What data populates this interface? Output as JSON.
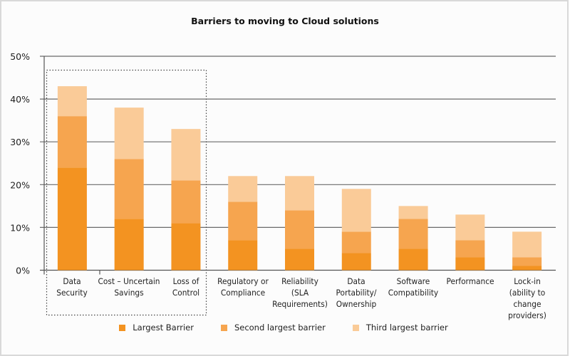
{
  "chart_data": {
    "type": "bar",
    "stacked": true,
    "title": "Barriers to moving to Cloud solutions",
    "categories": [
      "Data\nSecurity",
      "Cost – Uncertain\nSavings",
      "Loss of\nControl",
      "Regulatory or\nCompliance",
      "Reliability\n(SLA\nRequirements)",
      "Data\nPortability/\nOwnership",
      "Software\nCompatibility",
      "Performance",
      "Lock-in\n(ability to\nchange\nproviders)"
    ],
    "series": [
      {
        "name": "Largest Barrier",
        "color": "#f39321",
        "values": [
          24,
          12,
          11,
          7,
          5,
          4,
          5,
          3,
          1
        ]
      },
      {
        "name": "Second largest barrier",
        "color": "#f6a54f",
        "values": [
          12,
          14,
          10,
          9,
          9,
          5,
          7,
          4,
          2
        ]
      },
      {
        "name": "Third largest barrier",
        "color": "#facb98",
        "values": [
          7,
          12,
          12,
          6,
          8,
          10,
          3,
          6,
          6
        ]
      }
    ],
    "yticks": [
      "0%",
      "10%",
      "20%",
      "30%",
      "40%",
      "50%"
    ],
    "ylim": [
      0,
      50
    ],
    "grid": true,
    "legend": "bottom",
    "highlighted_categories": [
      "Data\nSecurity",
      "Cost – Uncertain\nSavings",
      "Loss of\nControl"
    ]
  }
}
